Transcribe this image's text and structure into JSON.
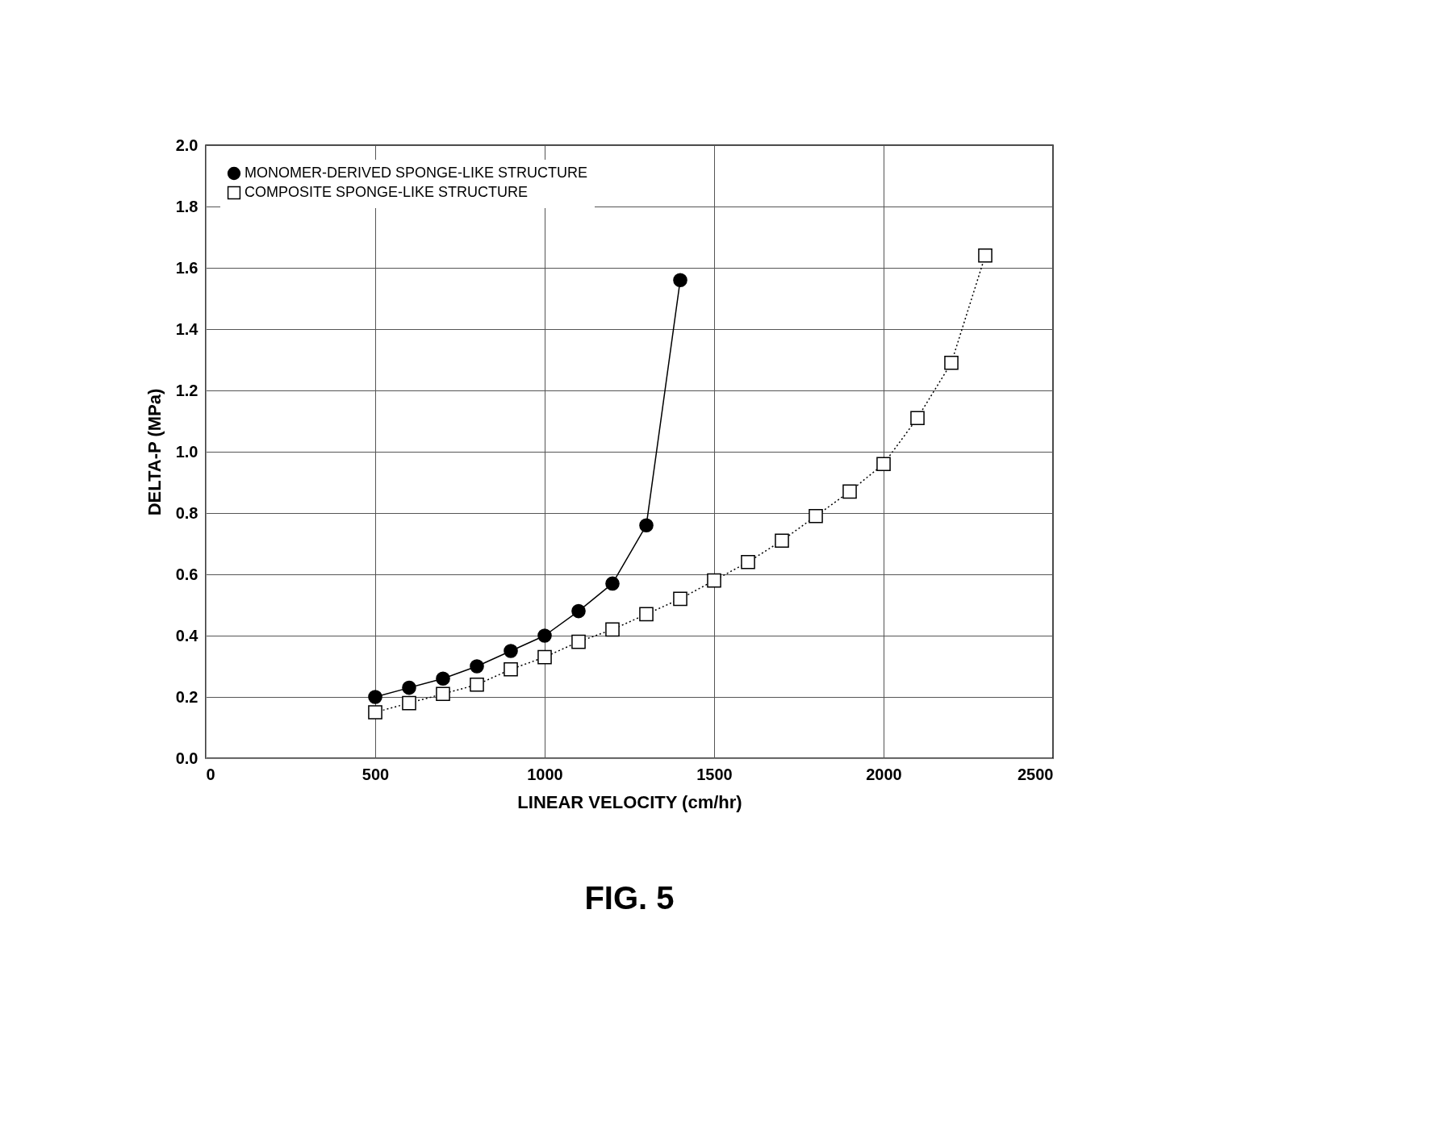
{
  "chart_data": {
    "type": "line",
    "xlabel": "LINEAR VELOCITY (cm/hr)",
    "ylabel": "DELTA-P (MPa)",
    "xlim": [
      0,
      2500
    ],
    "xticks": [
      0,
      500,
      1000,
      1500,
      2000,
      2500
    ],
    "ylim": [
      0,
      2.0
    ],
    "yticks": [
      {
        "value": 0,
        "label": "0.0"
      },
      {
        "value": 0.2,
        "label": "0.2"
      },
      {
        "value": 0.4,
        "label": "0.4"
      },
      {
        "value": 0.6,
        "label": "0.6"
      },
      {
        "value": 0.8,
        "label": "0.8"
      },
      {
        "value": 1.0,
        "label": "1.0"
      },
      {
        "value": 1.2,
        "label": "1.2"
      },
      {
        "value": 1.4,
        "label": "1.4"
      },
      {
        "value": 1.6,
        "label": "1.6"
      },
      {
        "value": 1.8,
        "label": "1.8"
      },
      {
        "value": 2.0,
        "label": "2.0"
      }
    ],
    "grid": true,
    "legend": "top left",
    "annotations": [
      "FIG. 5"
    ],
    "series": [
      {
        "name": "MONOMER-DERIVED SPONGE-LIKE STRUCTURE",
        "color": "#000000",
        "marker": "circle",
        "line_style": "solid",
        "x": [
          500,
          600,
          700,
          800,
          900,
          1000,
          1100,
          1200,
          1300,
          1400
        ],
        "values": [
          0.2,
          0.23,
          0.26,
          0.3,
          0.35,
          0.4,
          0.48,
          0.57,
          0.76,
          1.56
        ]
      },
      {
        "name": "COMPOSITE SPONGE-LIKE STRUCTURE",
        "color": "#000000",
        "marker": "square",
        "line_style": "dotted",
        "x": [
          500,
          600,
          700,
          800,
          900,
          1000,
          1100,
          1200,
          1300,
          1400,
          1500,
          1600,
          1700,
          1800,
          1900,
          2000,
          2100,
          2200,
          2300
        ],
        "values": [
          0.15,
          0.18,
          0.21,
          0.24,
          0.29,
          0.33,
          0.38,
          0.42,
          0.47,
          0.52,
          0.58,
          0.64,
          0.71,
          0.79,
          0.87,
          0.96,
          1.11,
          1.29,
          1.64
        ]
      }
    ]
  }
}
